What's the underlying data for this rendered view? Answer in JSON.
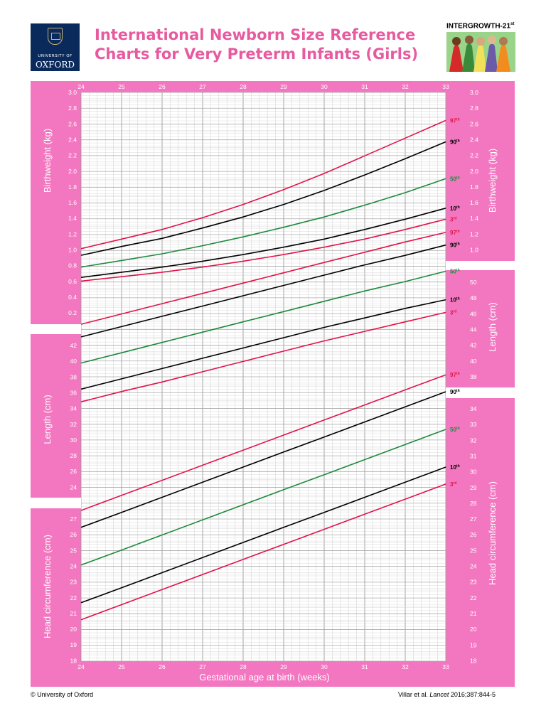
{
  "header": {
    "logo_line1": "UNIVERSITY OF",
    "logo_line2": "OXFORD",
    "title_line1": "International Newborn Size Reference",
    "title_line2": "Charts for Very Preterm Infants (Girls)",
    "brand": "INTERGROWTH-21",
    "brand_sup": "st"
  },
  "footer": {
    "copyright": "© University of Oxford",
    "citation_prefix": "Villar et al. ",
    "citation_journal": "Lancet",
    "citation_suffix": " 2016;387:844-5"
  },
  "colors": {
    "pink": "#f377c0",
    "title_pink": "#e75a9f",
    "red": "#e0144a",
    "black": "#000000",
    "green": "#1e8a3c",
    "grid": "#cfcfcf"
  },
  "chart_data": {
    "type": "line",
    "xlabel": "Gestational age at birth (weeks)",
    "x": [
      24,
      25,
      26,
      27,
      28,
      29,
      30,
      31,
      32,
      33
    ],
    "xlim": [
      24,
      33
    ],
    "panels": [
      {
        "ylabel": "Birthweight (kg)",
        "left_ticks": [
          "3.0",
          "2.8",
          "2.6",
          "2.4",
          "2.2",
          "2.0",
          "1.8",
          "1.6",
          "1.4",
          "1.2",
          "1.0",
          "0.8",
          "0.6",
          "0.4",
          "0.2"
        ],
        "right_ticks": [
          "3.0",
          "2.8",
          "2.6",
          "2.4",
          "2.2",
          "2.0",
          "1.8",
          "1.6",
          "1.4",
          "1.2",
          "1.0"
        ],
        "series": [
          {
            "name": "97th",
            "label": "97",
            "sup": "th",
            "color": "red",
            "values": [
              0.88,
              1.01,
              1.14,
              1.3,
              1.48,
              1.68,
              1.9,
              2.14,
              2.38,
              2.62
            ]
          },
          {
            "name": "90th",
            "label": "90",
            "sup": "th",
            "color": "black",
            "values": [
              0.79,
              0.91,
              1.02,
              1.16,
              1.31,
              1.48,
              1.67,
              1.88,
              2.1,
              2.33
            ]
          },
          {
            "name": "50th",
            "label": "50",
            "sup": "th",
            "color": "green",
            "values": [
              0.63,
              0.72,
              0.81,
              0.92,
              1.04,
              1.17,
              1.31,
              1.47,
              1.64,
              1.83
            ]
          },
          {
            "name": "10th",
            "label": "10",
            "sup": "th",
            "color": "black",
            "values": [
              0.49,
              0.56,
              0.63,
              0.71,
              0.8,
              0.9,
              1.01,
              1.14,
              1.28,
              1.43
            ]
          },
          {
            "name": "3rd",
            "label": "3",
            "sup": "rd",
            "color": "red",
            "values": [
              0.44,
              0.5,
              0.56,
              0.63,
              0.71,
              0.8,
              0.9,
              1.01,
              1.14,
              1.28
            ]
          }
        ]
      },
      {
        "ylabel": "Length (cm)",
        "left_ticks": [
          "42",
          "40",
          "38",
          "36",
          "34",
          "32",
          "30",
          "28",
          "26",
          "24"
        ],
        "right_ticks": [
          "50",
          "48",
          "46",
          "44",
          "42",
          "40",
          "38"
        ],
        "series": [
          {
            "name": "97th",
            "label": "97",
            "sup": "th",
            "color": "red",
            "values": [
              36.7,
              38.0,
              39.3,
              40.6,
              41.9,
              43.2,
              44.5,
              45.8,
              47.1,
              48.3
            ]
          },
          {
            "name": "90th",
            "label": "90",
            "sup": "th",
            "color": "black",
            "values": [
              35.1,
              36.4,
              37.7,
              39.0,
              40.3,
              41.6,
              42.9,
              44.2,
              45.4,
              46.7
            ]
          },
          {
            "name": "50th",
            "label": "50",
            "sup": "th",
            "color": "green",
            "values": [
              31.8,
              33.1,
              34.4,
              35.7,
              37.0,
              38.3,
              39.6,
              40.9,
              42.1,
              43.4
            ]
          },
          {
            "name": "10th",
            "label": "10",
            "sup": "th",
            "color": "black",
            "values": [
              28.5,
              29.8,
              31.1,
              32.4,
              33.7,
              35.0,
              36.3,
              37.5,
              38.7,
              39.8
            ]
          },
          {
            "name": "3rd",
            "label": "3",
            "sup": "rd",
            "color": "red",
            "values": [
              26.9,
              28.2,
              29.4,
              30.7,
              32.0,
              33.3,
              34.6,
              35.8,
              37.0,
              38.2
            ]
          }
        ]
      },
      {
        "ylabel": "Head circumference (cm)",
        "left_ticks": [
          "27",
          "26",
          "25",
          "24",
          "23",
          "22",
          "21",
          "20",
          "19",
          "18"
        ],
        "right_ticks": [
          "34",
          "33",
          "32",
          "31",
          "30",
          "29",
          "28",
          "27",
          "26",
          "25",
          "24",
          "23",
          "22",
          "21",
          "20",
          "19",
          "18"
        ],
        "series": [
          {
            "name": "97th",
            "label": "97",
            "sup": "th",
            "color": "red",
            "values": [
              25.0,
              25.8,
              26.6,
              27.4,
              28.2,
              29.0,
              29.8,
              30.6,
              31.4,
              32.2
            ]
          },
          {
            "name": "90th",
            "label": "90",
            "sup": "th",
            "color": "black",
            "values": [
              24.1,
              24.9,
              25.7,
              26.5,
              27.3,
              28.1,
              28.9,
              29.7,
              30.5,
              31.3
            ]
          },
          {
            "name": "50th",
            "label": "50",
            "sup": "th",
            "color": "green",
            "values": [
              22.1,
              22.9,
              23.7,
              24.5,
              25.3,
              26.1,
              26.9,
              27.7,
              28.5,
              29.3
            ]
          },
          {
            "name": "10th",
            "label": "10",
            "sup": "th",
            "color": "black",
            "values": [
              20.1,
              20.9,
              21.7,
              22.5,
              23.3,
              24.1,
              24.9,
              25.7,
              26.5,
              27.3
            ]
          },
          {
            "name": "3rd",
            "label": "3",
            "sup": "rd",
            "color": "red",
            "values": [
              19.2,
              20.0,
              20.8,
              21.6,
              22.4,
              23.2,
              24.0,
              24.8,
              25.6,
              26.4
            ]
          }
        ]
      }
    ]
  }
}
